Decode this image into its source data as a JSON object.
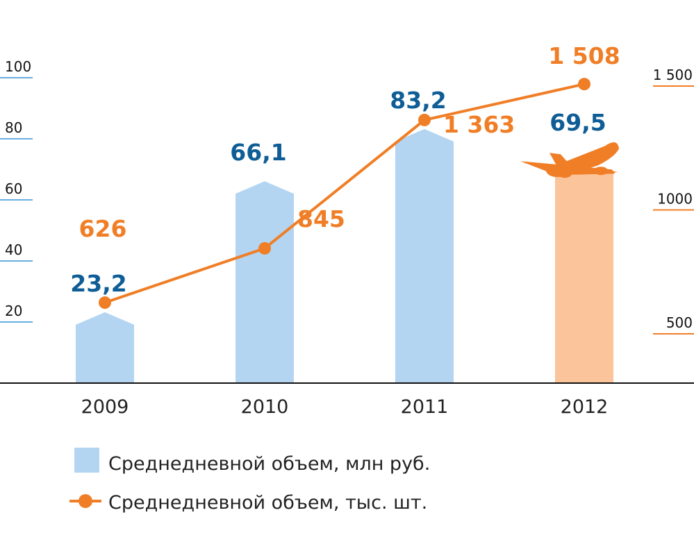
{
  "colors": {
    "bar": "#b3d5f2",
    "bar_highlight": "#fbc49b",
    "line": "#f07e26",
    "bar_label": "#0f5d96",
    "left_axis": "#66aee0",
    "right_axis": "#f07e26",
    "baseline": "#111111"
  },
  "chart_data": {
    "type": "bar",
    "categories": [
      "2009",
      "2010",
      "2011",
      "2012"
    ],
    "series": [
      {
        "name": "Среднедневной объем, млн руб.",
        "type": "bar",
        "axis": "left",
        "values": [
          23.2,
          66.1,
          83.2,
          69.5
        ],
        "labels": [
          "23,2",
          "66,1",
          "83,2",
          "69,5"
        ],
        "highlight_index": 3
      },
      {
        "name": "Среднедневной объем, тыс. шт.",
        "type": "line",
        "axis": "right",
        "values": [
          626,
          845,
          1363,
          1508
        ],
        "labels": [
          "626",
          "845",
          "1 363",
          "1 508"
        ]
      }
    ],
    "y_left": {
      "ticks": [
        "20",
        "40",
        "60",
        "80",
        "100"
      ],
      "tick_values": [
        20,
        40,
        60,
        80,
        100
      ]
    },
    "y_right": {
      "ticks": [
        "500",
        "1000",
        "1 500"
      ],
      "tick_values": [
        500,
        1000,
        1500
      ]
    },
    "legend": [
      "Среднедневной объем, млн руб.",
      "Среднедневной объем, тыс. шт."
    ],
    "legend_position": "bottom",
    "icon": "airplane-icon"
  }
}
